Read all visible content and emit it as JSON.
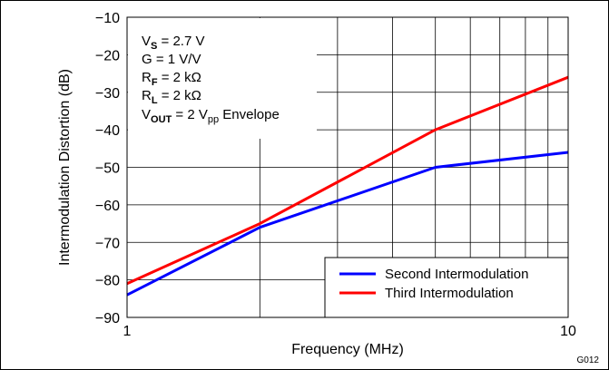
{
  "chart_data": {
    "type": "line",
    "xscale": "log",
    "xlim": [
      1,
      10
    ],
    "ylim": [
      -90,
      -10
    ],
    "xlabel": "Frequency (MHz)",
    "ylabel": "Intermodulation Distortion (dB)",
    "x_tick_labels": [
      "1",
      "10"
    ],
    "y_ticks": [
      -10,
      -20,
      -30,
      -40,
      -50,
      -60,
      -70,
      -80,
      -90
    ],
    "y_tick_labels": [
      "−10",
      "−20",
      "−30",
      "−40",
      "−50",
      "−60",
      "−70",
      "−80",
      "−90"
    ],
    "grid": true,
    "legend_position": "bottom-right",
    "series": [
      {
        "name": "Second Intermodulation",
        "color": "#0000ff",
        "x": [
          1,
          2,
          5,
          10
        ],
        "y": [
          -84,
          -66,
          -50,
          -46
        ]
      },
      {
        "name": "Third Intermodulation",
        "color": "#ff0000",
        "x": [
          1,
          2,
          5,
          10
        ],
        "y": [
          -81,
          -65,
          -40,
          -26
        ]
      }
    ],
    "annotations": [
      {
        "main": "V",
        "sub": "S",
        "rest": " = 2.7 V"
      },
      {
        "main": "G = 1 V/V",
        "sub": "",
        "rest": ""
      },
      {
        "main": "R",
        "sub": "F",
        "rest": " = 2 kΩ"
      },
      {
        "main": "R",
        "sub": "L",
        "rest": " = 2 kΩ"
      },
      {
        "main": "V",
        "sub": "OUT",
        "rest": " = 2 V",
        "sub2": "pp",
        "rest2": " Envelope"
      }
    ],
    "figure_id": "G012"
  }
}
